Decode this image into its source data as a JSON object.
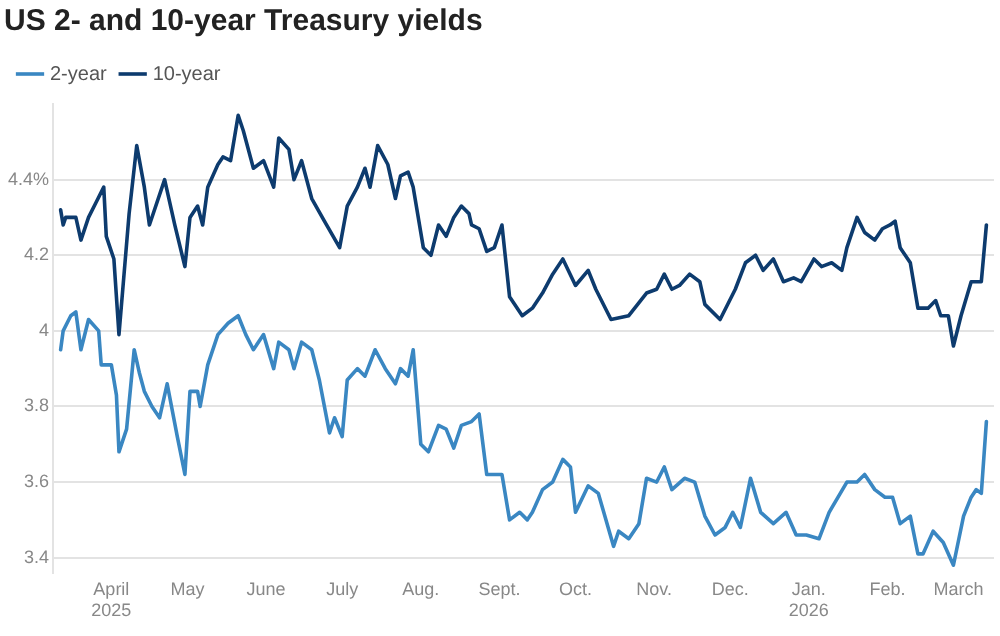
{
  "chart_data": {
    "type": "line",
    "title": "US 2- and 10-year Treasury yields",
    "xlim": [
      "2025-03-09",
      "2026-03-15"
    ],
    "xticks": [
      {
        "value": "2025-04-01",
        "label": "April\n2025"
      },
      {
        "value": "2025-05-01",
        "label": "May"
      },
      {
        "value": "2025-06-01",
        "label": "June"
      },
      {
        "value": "2025-07-01",
        "label": "July"
      },
      {
        "value": "2025-08-01",
        "label": "Aug."
      },
      {
        "value": "2025-09-01",
        "label": "Sept."
      },
      {
        "value": "2025-10-01",
        "label": "Oct."
      },
      {
        "value": "2025-11-01",
        "label": "Nov."
      },
      {
        "value": "2025-12-01",
        "label": "Dec."
      },
      {
        "value": "2026-01-01",
        "label": "Jan.\n2026"
      },
      {
        "value": "2026-02-01",
        "label": "Feb."
      },
      {
        "value": "2026-03-01",
        "label": "March"
      }
    ],
    "ylim": [
      3.36,
      4.6
    ],
    "yticks": [
      {
        "value": 3.4,
        "label": "3.4"
      },
      {
        "value": 3.6,
        "label": "3.6"
      },
      {
        "value": 3.8,
        "label": "3.8"
      },
      {
        "value": 4,
        "label": "4"
      },
      {
        "value": 4.2,
        "label": "4.2"
      },
      {
        "value": 4.4,
        "label": "4.4%"
      }
    ],
    "grid": "y",
    "legend": "top left",
    "marker": "none",
    "line_style": "solid",
    "series": [
      {
        "name": "2-year",
        "color": "#3a87c2",
        "x": [
          "2025-03-12",
          "2025-03-13",
          "2025-03-16",
          "2025-03-18",
          "2025-03-20",
          "2025-03-23",
          "2025-03-27",
          "2025-03-28",
          "2025-04-01",
          "2025-04-03",
          "2025-04-04",
          "2025-04-07",
          "2025-04-10",
          "2025-04-12",
          "2025-04-14",
          "2025-04-17",
          "2025-04-20",
          "2025-04-23",
          "2025-04-27",
          "2025-04-30",
          "2025-05-02",
          "2025-05-05",
          "2025-05-06",
          "2025-05-09",
          "2025-05-13",
          "2025-05-17",
          "2025-05-21",
          "2025-05-24",
          "2025-05-27",
          "2025-05-31",
          "2025-06-04",
          "2025-06-06",
          "2025-06-10",
          "2025-06-12",
          "2025-06-15",
          "2025-06-19",
          "2025-06-22",
          "2025-06-26",
          "2025-06-28",
          "2025-07-01",
          "2025-07-03",
          "2025-07-07",
          "2025-07-10",
          "2025-07-14",
          "2025-07-18",
          "2025-07-22",
          "2025-07-24",
          "2025-07-27",
          "2025-07-29",
          "2025-08-01",
          "2025-08-04",
          "2025-08-08",
          "2025-08-11",
          "2025-08-14",
          "2025-08-17",
          "2025-08-21",
          "2025-08-24",
          "2025-08-27",
          "2025-08-31",
          "2025-09-02",
          "2025-09-05",
          "2025-09-09",
          "2025-09-12",
          "2025-09-14",
          "2025-09-18",
          "2025-09-22",
          "2025-09-26",
          "2025-09-29",
          "2025-10-01",
          "2025-10-06",
          "2025-10-10",
          "2025-10-16",
          "2025-10-18",
          "2025-10-22",
          "2025-10-26",
          "2025-10-29",
          "2025-11-02",
          "2025-11-05",
          "2025-11-08",
          "2025-11-13",
          "2025-11-17",
          "2025-11-21",
          "2025-11-25",
          "2025-11-29",
          "2025-12-02",
          "2025-12-05",
          "2025-12-09",
          "2025-12-13",
          "2025-12-18",
          "2025-12-23",
          "2025-12-27",
          "2025-12-31",
          "2026-01-05",
          "2026-01-09",
          "2026-01-16",
          "2026-01-20",
          "2026-01-23",
          "2026-01-27",
          "2026-01-31",
          "2026-02-03",
          "2026-02-06",
          "2026-02-10",
          "2026-02-13",
          "2026-02-15",
          "2026-02-19",
          "2026-02-23",
          "2026-02-27",
          "2026-03-03",
          "2026-03-06",
          "2026-03-08",
          "2026-03-10",
          "2026-03-12"
        ],
        "values": [
          3.95,
          4.0,
          4.04,
          4.05,
          3.95,
          4.03,
          4.0,
          3.91,
          3.91,
          3.83,
          3.68,
          3.74,
          3.95,
          3.89,
          3.84,
          3.8,
          3.77,
          3.86,
          3.72,
          3.62,
          3.84,
          3.84,
          3.8,
          3.91,
          3.99,
          4.02,
          4.04,
          3.99,
          3.95,
          3.99,
          3.9,
          3.97,
          3.95,
          3.9,
          3.97,
          3.95,
          3.87,
          3.73,
          3.77,
          3.72,
          3.87,
          3.9,
          3.88,
          3.95,
          3.9,
          3.86,
          3.9,
          3.88,
          3.95,
          3.7,
          3.68,
          3.75,
          3.74,
          3.69,
          3.75,
          3.76,
          3.78,
          3.62,
          3.62,
          3.62,
          3.5,
          3.52,
          3.5,
          3.52,
          3.58,
          3.6,
          3.66,
          3.64,
          3.52,
          3.59,
          3.57,
          3.43,
          3.47,
          3.45,
          3.49,
          3.61,
          3.6,
          3.64,
          3.58,
          3.61,
          3.6,
          3.51,
          3.46,
          3.48,
          3.52,
          3.48,
          3.61,
          3.52,
          3.49,
          3.52,
          3.46,
          3.46,
          3.45,
          3.52,
          3.6,
          3.6,
          3.62,
          3.58,
          3.56,
          3.56,
          3.49,
          3.51,
          3.41,
          3.41,
          3.47,
          3.44,
          3.38,
          3.51,
          3.56,
          3.58,
          3.57,
          3.76
        ]
      },
      {
        "name": "10-year",
        "color": "#0d3b6e",
        "x": [
          "2025-03-12",
          "2025-03-13",
          "2025-03-14",
          "2025-03-18",
          "2025-03-20",
          "2025-03-23",
          "2025-03-26",
          "2025-03-29",
          "2025-03-30",
          "2025-04-02",
          "2025-04-04",
          "2025-04-08",
          "2025-04-11",
          "2025-04-14",
          "2025-04-16",
          "2025-04-22",
          "2025-04-26",
          "2025-04-30",
          "2025-05-02",
          "2025-05-05",
          "2025-05-07",
          "2025-05-09",
          "2025-05-13",
          "2025-05-15",
          "2025-05-18",
          "2025-05-21",
          "2025-05-23",
          "2025-05-27",
          "2025-05-31",
          "2025-06-04",
          "2025-06-06",
          "2025-06-10",
          "2025-06-12",
          "2025-06-15",
          "2025-06-19",
          "2025-06-24",
          "2025-06-30",
          "2025-07-03",
          "2025-07-07",
          "2025-07-10",
          "2025-07-12",
          "2025-07-15",
          "2025-07-19",
          "2025-07-22",
          "2025-07-24",
          "2025-07-27",
          "2025-07-29",
          "2025-08-02",
          "2025-08-05",
          "2025-08-08",
          "2025-08-11",
          "2025-08-14",
          "2025-08-17",
          "2025-08-20",
          "2025-08-21",
          "2025-08-24",
          "2025-08-27",
          "2025-08-30",
          "2025-09-02",
          "2025-09-05",
          "2025-09-10",
          "2025-09-14",
          "2025-09-18",
          "2025-09-22",
          "2025-09-26",
          "2025-10-01",
          "2025-10-06",
          "2025-10-09",
          "2025-10-15",
          "2025-10-22",
          "2025-10-29",
          "2025-11-02",
          "2025-11-05",
          "2025-11-08",
          "2025-11-11",
          "2025-11-15",
          "2025-11-19",
          "2025-11-21",
          "2025-11-27",
          "2025-12-03",
          "2025-12-07",
          "2025-12-11",
          "2025-12-14",
          "2025-12-18",
          "2025-12-22",
          "2025-12-26",
          "2025-12-29",
          "2026-01-03",
          "2026-01-06",
          "2026-01-10",
          "2026-01-14",
          "2026-01-16",
          "2026-01-20",
          "2026-01-23",
          "2026-01-27",
          "2026-01-30",
          "2026-02-02",
          "2026-02-04",
          "2026-02-06",
          "2026-02-10",
          "2026-02-13",
          "2026-02-17",
          "2026-02-20",
          "2026-02-22",
          "2026-02-25",
          "2026-02-27",
          "2026-03-02",
          "2026-03-06",
          "2026-03-10",
          "2026-03-12"
        ],
        "values": [
          4.32,
          4.28,
          4.3,
          4.3,
          4.24,
          4.3,
          4.34,
          4.38,
          4.25,
          4.19,
          3.99,
          4.31,
          4.49,
          4.38,
          4.28,
          4.4,
          4.28,
          4.17,
          4.3,
          4.33,
          4.28,
          4.38,
          4.44,
          4.46,
          4.45,
          4.57,
          4.53,
          4.43,
          4.45,
          4.38,
          4.51,
          4.48,
          4.4,
          4.45,
          4.35,
          4.29,
          4.22,
          4.33,
          4.38,
          4.43,
          4.38,
          4.49,
          4.44,
          4.35,
          4.41,
          4.42,
          4.38,
          4.22,
          4.2,
          4.28,
          4.25,
          4.3,
          4.33,
          4.31,
          4.28,
          4.27,
          4.21,
          4.22,
          4.28,
          4.09,
          4.04,
          4.06,
          4.1,
          4.15,
          4.19,
          4.12,
          4.16,
          4.11,
          4.03,
          4.04,
          4.1,
          4.11,
          4.15,
          4.11,
          4.12,
          4.15,
          4.13,
          4.07,
          4.03,
          4.11,
          4.18,
          4.2,
          4.16,
          4.19,
          4.13,
          4.14,
          4.13,
          4.19,
          4.17,
          4.18,
          4.16,
          4.22,
          4.3,
          4.26,
          4.24,
          4.27,
          4.28,
          4.29,
          4.22,
          4.18,
          4.06,
          4.06,
          4.08,
          4.04,
          4.04,
          3.96,
          4.04,
          4.13,
          4.13,
          4.28
        ]
      }
    ]
  }
}
